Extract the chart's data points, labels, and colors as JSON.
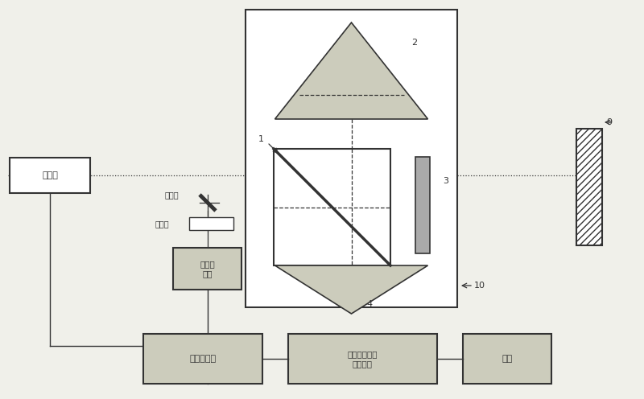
{
  "bg_color": "#f0f0ea",
  "line_color": "#333333",
  "prism_fill": "#ccccbc",
  "box_fill": "#ccccbc",
  "qwp_fill": "#aaaaaa",
  "white": "#ffffff",
  "labels": {
    "laser": "激光器",
    "mirror_label": "反光镜",
    "detector_label": "检偶器",
    "photodet": "光电接\n收器",
    "counter": "激光计数器",
    "compensation": "测定补偿和单\n位计算卡",
    "display": "显示"
  },
  "nums": [
    "1",
    "2",
    "3",
    "4",
    "9",
    "10"
  ]
}
